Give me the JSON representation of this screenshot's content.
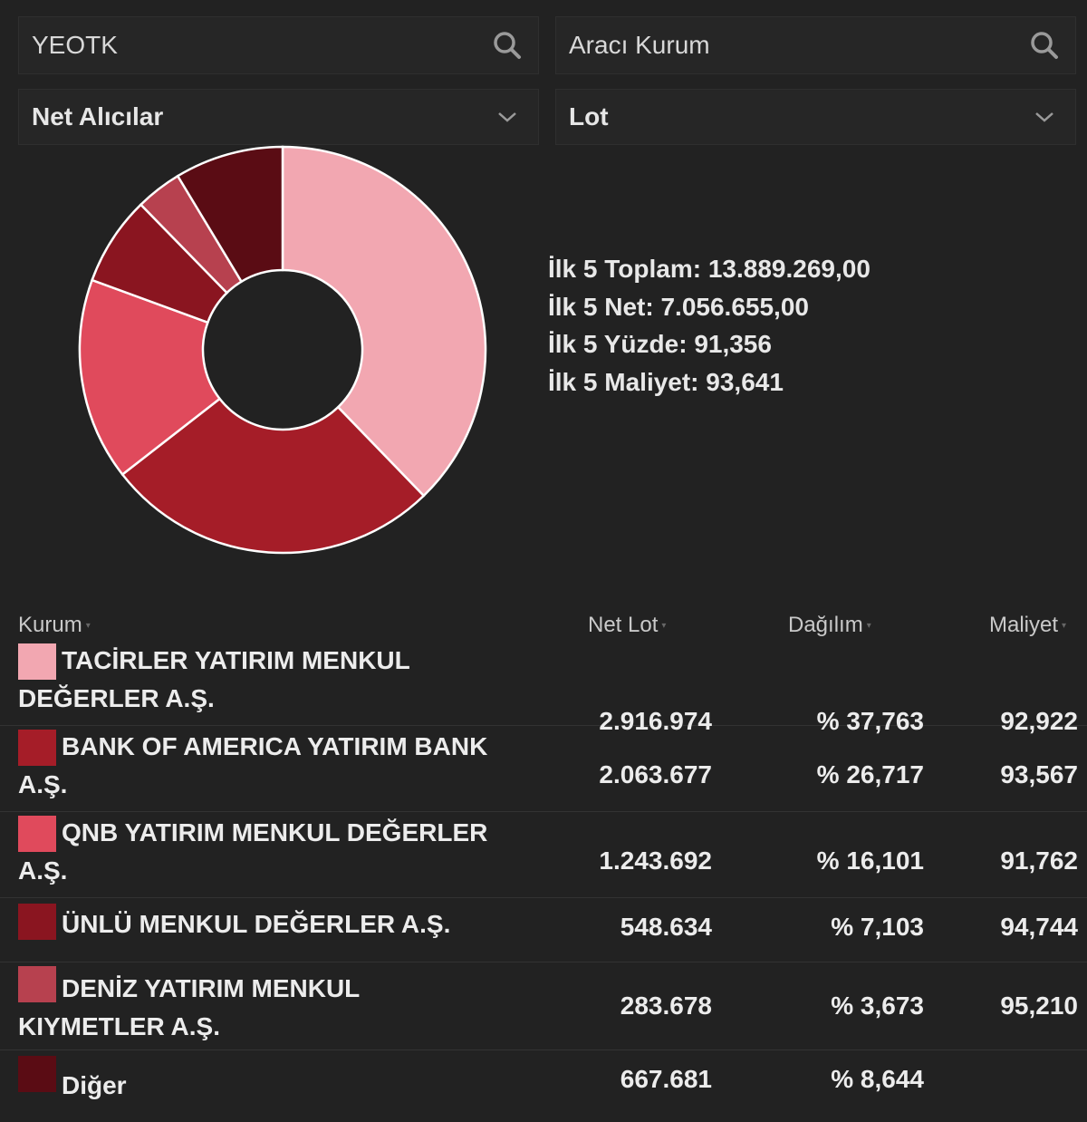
{
  "filters": {
    "symbol_value": "YEOTK",
    "broker_placeholder": "Aracı Kurum",
    "side_selected": "Net Alıcılar",
    "unit_selected": "Lot"
  },
  "summary": {
    "total": "İlk 5 Toplam: 13.889.269,00",
    "net": "İlk 5 Net: 7.056.655,00",
    "percent": "İlk 5 Yüzde: 91,356",
    "cost": "İlk 5 Maliyet: 93,641"
  },
  "table": {
    "headers": {
      "kurum": "Kurum",
      "net_lot": "Net Lot",
      "dagilim": "Dağılım",
      "maliyet": "Maliyet"
    },
    "rows": [
      {
        "name": "TACİRLER YATIRIM MENKUL DEĞERLER A.Ş.",
        "net_lot": "2.916.974",
        "dagilim": "% 37,763",
        "maliyet": "92,922",
        "color": "#f2a7b1"
      },
      {
        "name": "BANK OF AMERICA YATIRIM BANK A.Ş.",
        "net_lot": "2.063.677",
        "dagilim": "% 26,717",
        "maliyet": "93,567",
        "color": "#a51d28"
      },
      {
        "name": "QNB YATIRIM MENKUL DEĞERLER A.Ş.",
        "net_lot": "1.243.692",
        "dagilim": "% 16,101",
        "maliyet": "91,762",
        "color": "#e04a5c"
      },
      {
        "name": "ÜNLÜ MENKUL DEĞERLER A.Ş.",
        "net_lot": "548.634",
        "dagilim": "% 7,103",
        "maliyet": "94,744",
        "color": "#8a1520"
      },
      {
        "name": "DENİZ YATIRIM MENKUL KIYMETLER A.Ş.",
        "net_lot": "283.678",
        "dagilim": "% 3,673",
        "maliyet": "95,210",
        "color": "#b7414f"
      },
      {
        "name": "Diğer",
        "net_lot": "667.681",
        "dagilim": "% 8,644",
        "maliyet": "",
        "color": "#5a0c14"
      }
    ]
  },
  "chart_data": {
    "type": "pie",
    "categories": [
      "TACİRLER YATIRIM MENKUL DEĞERLER A.Ş.",
      "BANK OF AMERICA YATIRIM BANK A.Ş.",
      "QNB YATIRIM MENKUL DEĞERLER A.Ş.",
      "ÜNLÜ MENKUL DEĞERLER A.Ş.",
      "DENİZ YATIRIM MENKUL KIYMETLER A.Ş.",
      "Diğer"
    ],
    "values": [
      37.763,
      26.717,
      16.101,
      7.103,
      3.673,
      8.644
    ],
    "colors": [
      "#f2a7b1",
      "#a51d28",
      "#e04a5c",
      "#8a1520",
      "#b7414f",
      "#5a0c14"
    ],
    "title": "",
    "donut": true
  }
}
